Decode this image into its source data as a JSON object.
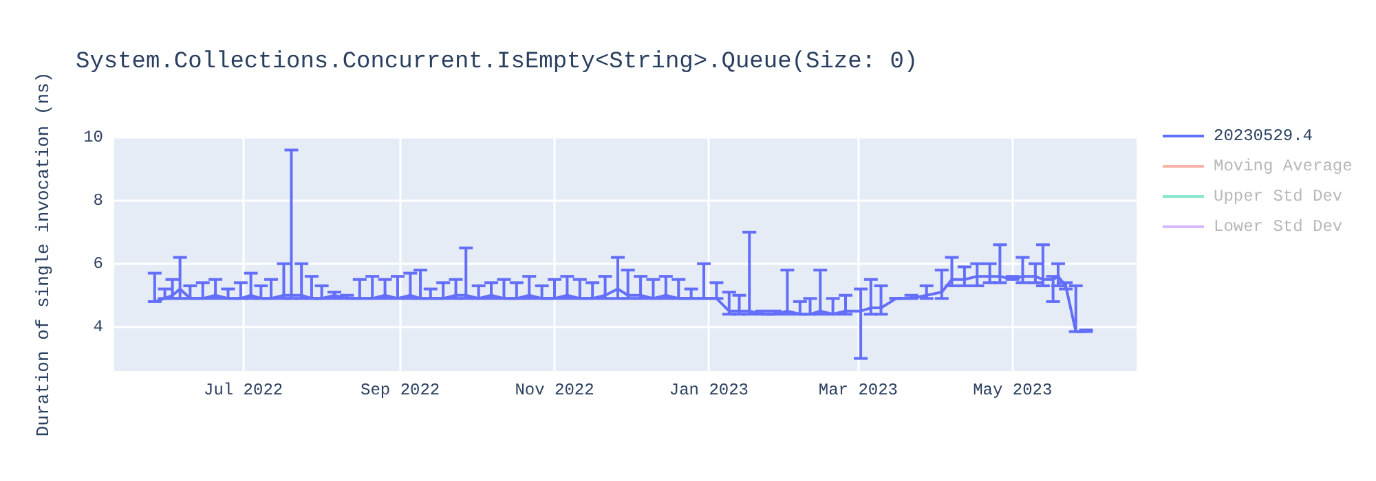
{
  "chart_data": {
    "type": "line",
    "title": "System.Collections.Concurrent.IsEmpty<String>.Queue(Size: 0)",
    "ylabel": "Duration of single invocation (ns)",
    "x": [
      "2022-05-27",
      "2022-05-31",
      "2022-06-03",
      "2022-06-06",
      "2022-06-10",
      "2022-06-15",
      "2022-06-20",
      "2022-06-25",
      "2022-06-30",
      "2022-07-04",
      "2022-07-08",
      "2022-07-12",
      "2022-07-17",
      "2022-07-20",
      "2022-07-24",
      "2022-07-28",
      "2022-08-01",
      "2022-08-06",
      "2022-08-11",
      "2022-08-16",
      "2022-08-21",
      "2022-08-26",
      "2022-08-31",
      "2022-09-05",
      "2022-09-09",
      "2022-09-13",
      "2022-09-18",
      "2022-09-23",
      "2022-09-27",
      "2022-10-02",
      "2022-10-07",
      "2022-10-12",
      "2022-10-17",
      "2022-10-22",
      "2022-10-27",
      "2022-11-01",
      "2022-11-06",
      "2022-11-11",
      "2022-11-16",
      "2022-11-21",
      "2022-11-26",
      "2022-11-30",
      "2022-12-05",
      "2022-12-10",
      "2022-12-15",
      "2022-12-20",
      "2022-12-25",
      "2022-12-30",
      "2023-01-04",
      "2023-01-09",
      "2023-01-13",
      "2023-01-17",
      "2023-01-22",
      "2023-01-27",
      "2023-02-01",
      "2023-02-06",
      "2023-02-10",
      "2023-02-14",
      "2023-02-19",
      "2023-02-24",
      "2023-03-02",
      "2023-03-06",
      "2023-03-10",
      "2023-03-16",
      "2023-03-22",
      "2023-03-28",
      "2023-04-03",
      "2023-04-07",
      "2023-04-12",
      "2023-04-17",
      "2023-04-22",
      "2023-04-26",
      "2023-05-01",
      "2023-05-05",
      "2023-05-10",
      "2023-05-13",
      "2023-05-17",
      "2023-05-19",
      "2023-05-22",
      "2023-05-26",
      "2023-05-30"
    ],
    "series": [
      {
        "name": "20230529.4",
        "color": "#636efa",
        "values": [
          4.8,
          4.9,
          5.0,
          5.2,
          4.9,
          4.9,
          5.0,
          4.9,
          4.9,
          5.0,
          4.9,
          4.9,
          5.0,
          5.0,
          5.0,
          4.9,
          4.9,
          5.0,
          4.9,
          4.9,
          4.9,
          5.0,
          4.9,
          5.0,
          4.9,
          4.9,
          4.9,
          5.0,
          5.0,
          4.9,
          5.0,
          4.9,
          4.9,
          5.0,
          4.9,
          4.9,
          5.0,
          4.9,
          4.9,
          5.0,
          5.2,
          5.0,
          5.0,
          4.9,
          5.0,
          4.9,
          4.9,
          4.9,
          4.9,
          4.5,
          4.5,
          4.5,
          4.4,
          4.4,
          4.5,
          4.4,
          4.4,
          4.5,
          4.4,
          4.5,
          4.5,
          4.6,
          4.6,
          4.9,
          4.9,
          5.0,
          5.1,
          5.5,
          5.5,
          5.6,
          5.6,
          5.6,
          5.5,
          5.6,
          5.6,
          5.5,
          5.5,
          5.6,
          5.3,
          3.85,
          3.85
        ],
        "errors": [
          [
            4.8,
            5.7
          ],
          [
            4.9,
            5.2
          ],
          [
            4.9,
            5.5
          ],
          [
            4.9,
            6.2
          ],
          [
            4.9,
            5.3
          ],
          [
            4.9,
            5.4
          ],
          [
            4.9,
            5.5
          ],
          [
            4.9,
            5.2
          ],
          [
            4.9,
            5.4
          ],
          [
            4.9,
            5.7
          ],
          [
            4.9,
            5.3
          ],
          [
            4.9,
            5.5
          ],
          [
            4.9,
            6.0
          ],
          [
            4.9,
            9.6
          ],
          [
            4.9,
            6.0
          ],
          [
            4.9,
            5.6
          ],
          [
            4.9,
            5.3
          ],
          [
            4.9,
            5.1
          ],
          [
            4.9,
            5.0
          ],
          [
            4.9,
            5.5
          ],
          [
            4.9,
            5.6
          ],
          [
            4.9,
            5.5
          ],
          [
            4.9,
            5.6
          ],
          [
            4.9,
            5.7
          ],
          [
            4.9,
            5.8
          ],
          [
            4.9,
            5.2
          ],
          [
            4.9,
            5.4
          ],
          [
            4.9,
            5.5
          ],
          [
            4.9,
            6.5
          ],
          [
            4.9,
            5.3
          ],
          [
            4.9,
            5.4
          ],
          [
            4.9,
            5.5
          ],
          [
            4.9,
            5.4
          ],
          [
            4.9,
            5.6
          ],
          [
            4.9,
            5.3
          ],
          [
            4.9,
            5.5
          ],
          [
            4.9,
            5.6
          ],
          [
            4.9,
            5.5
          ],
          [
            4.9,
            5.4
          ],
          [
            4.9,
            5.6
          ],
          [
            4.9,
            6.2
          ],
          [
            4.9,
            5.8
          ],
          [
            4.9,
            5.6
          ],
          [
            4.9,
            5.5
          ],
          [
            4.9,
            5.6
          ],
          [
            4.9,
            5.5
          ],
          [
            4.9,
            5.2
          ],
          [
            4.9,
            6.0
          ],
          [
            4.9,
            5.4
          ],
          [
            4.4,
            5.1
          ],
          [
            4.4,
            5.0
          ],
          [
            4.4,
            7.0
          ],
          [
            4.4,
            4.5
          ],
          [
            4.4,
            4.5
          ],
          [
            4.4,
            5.8
          ],
          [
            4.4,
            4.8
          ],
          [
            4.4,
            4.9
          ],
          [
            4.4,
            5.8
          ],
          [
            4.4,
            4.9
          ],
          [
            4.4,
            5.0
          ],
          [
            3.0,
            5.2
          ],
          [
            4.4,
            5.5
          ],
          [
            4.4,
            5.3
          ],
          [
            4.9,
            4.9
          ],
          [
            4.9,
            5.0
          ],
          [
            4.9,
            5.3
          ],
          [
            4.9,
            5.8
          ],
          [
            5.3,
            6.2
          ],
          [
            5.3,
            5.9
          ],
          [
            5.3,
            6.0
          ],
          [
            5.4,
            6.0
          ],
          [
            5.4,
            6.6
          ],
          [
            5.5,
            5.6
          ],
          [
            5.4,
            6.2
          ],
          [
            5.4,
            6.0
          ],
          [
            5.3,
            6.6
          ],
          [
            4.8,
            5.6
          ],
          [
            5.3,
            6.0
          ],
          [
            5.2,
            5.4
          ],
          [
            3.85,
            5.3
          ],
          [
            3.85,
            3.9
          ]
        ]
      },
      {
        "name": "Moving Average",
        "color": "#ef553b",
        "values": [
          null,
          null,
          null,
          null,
          null,
          null,
          null,
          null,
          null,
          null,
          null,
          null,
          null,
          null,
          null,
          null,
          null,
          null,
          null,
          null,
          null,
          null,
          null,
          null,
          null,
          null,
          null,
          null,
          null,
          null,
          null,
          null,
          null,
          null,
          null,
          null,
          null,
          null,
          null,
          null,
          null,
          null,
          null,
          null,
          null,
          null,
          null,
          null,
          null,
          null,
          null,
          null,
          null,
          null,
          null,
          null,
          null,
          null,
          null,
          null,
          null,
          null,
          null,
          null,
          null,
          null,
          null,
          null,
          null,
          null,
          null,
          null,
          null,
          null,
          null,
          null,
          null,
          null,
          null,
          null,
          null
        ]
      },
      {
        "name": "Upper Std Dev",
        "color": "#00cc96",
        "values": [
          null,
          null,
          null,
          null,
          null,
          null,
          null,
          null,
          null,
          null,
          null,
          null,
          null,
          null,
          null,
          null,
          null,
          null,
          null,
          null,
          null,
          null,
          null,
          null,
          null,
          null,
          null,
          null,
          null,
          null,
          null,
          null,
          null,
          null,
          null,
          null,
          null,
          null,
          null,
          null,
          null,
          null,
          null,
          null,
          null,
          null,
          null,
          null,
          null,
          null,
          null,
          null,
          null,
          null,
          null,
          null,
          null,
          null,
          null,
          null,
          null,
          null,
          null,
          null,
          null,
          null,
          null,
          null,
          null,
          null,
          null,
          null,
          null,
          null,
          null,
          null,
          null,
          null,
          null,
          null,
          null
        ]
      },
      {
        "name": "Lower Std Dev",
        "color": "#ab63fa",
        "values": [
          null,
          null,
          null,
          null,
          null,
          null,
          null,
          null,
          null,
          null,
          null,
          null,
          null,
          null,
          null,
          null,
          null,
          null,
          null,
          null,
          null,
          null,
          null,
          null,
          null,
          null,
          null,
          null,
          null,
          null,
          null,
          null,
          null,
          null,
          null,
          null,
          null,
          null,
          null,
          null,
          null,
          null,
          null,
          null,
          null,
          null,
          null,
          null,
          null,
          null,
          null,
          null,
          null,
          null,
          null,
          null,
          null,
          null,
          null,
          null,
          null,
          null,
          null,
          null,
          null,
          null,
          null,
          null,
          null,
          null,
          null,
          null,
          null,
          null,
          null,
          null,
          null,
          null,
          null,
          null,
          null
        ]
      }
    ],
    "xlim": [
      "2022-05-11",
      "2023-06-19"
    ],
    "xticks": [
      {
        "value": "2022-07-01",
        "label": "Jul 2022"
      },
      {
        "value": "2022-09-01",
        "label": "Sep 2022"
      },
      {
        "value": "2022-11-01",
        "label": "Nov 2022"
      },
      {
        "value": "2023-01-01",
        "label": "Jan 2023"
      },
      {
        "value": "2023-03-01",
        "label": "Mar 2023"
      },
      {
        "value": "2023-05-01",
        "label": "May 2023"
      }
    ],
    "ylim": [
      2.6,
      10
    ],
    "yticks": [
      4,
      6,
      8,
      10
    ],
    "grid": true,
    "legend": "top right",
    "marker": "none",
    "line_style": "solid"
  }
}
